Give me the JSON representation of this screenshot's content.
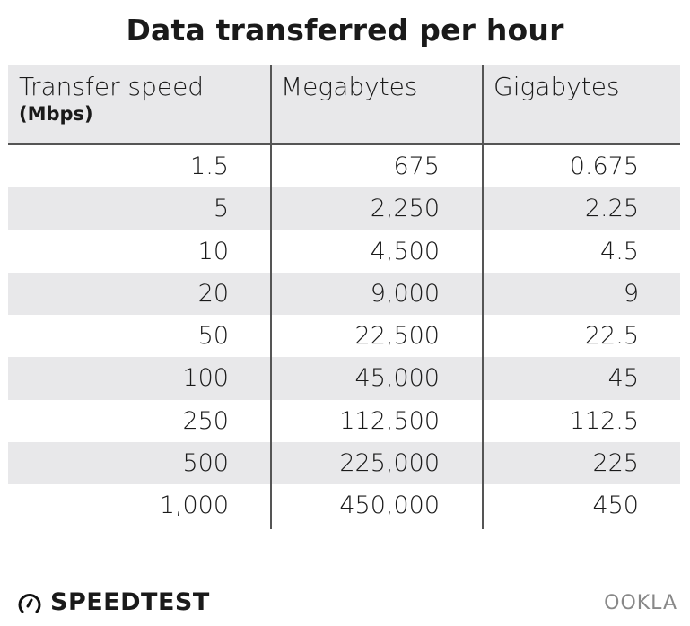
{
  "chart_data": {
    "type": "table",
    "title": "Data transferred per hour",
    "columns": [
      {
        "label": "Transfer speed",
        "sublabel": "(Mbps)"
      },
      {
        "label": "Megabytes"
      },
      {
        "label": "Gigabytes"
      }
    ],
    "rows": [
      [
        "1.5",
        "675",
        "0.675"
      ],
      [
        "5",
        "2,250",
        "2.25"
      ],
      [
        "10",
        "4,500",
        "4.5"
      ],
      [
        "20",
        "9,000",
        "9"
      ],
      [
        "50",
        "22,500",
        "22.5"
      ],
      [
        "100",
        "45,000",
        "45"
      ],
      [
        "250",
        "112,500",
        "112.5"
      ],
      [
        "500",
        "225,000",
        "225"
      ],
      [
        "1,000",
        "450,000",
        "450"
      ]
    ],
    "colors": {
      "header_band": "#e8e8ea",
      "alt_row": "#e8e8ea",
      "rules": "#555555"
    }
  },
  "footer": {
    "brand": "SPEEDTEST",
    "brand_icon": "speedometer-icon",
    "partner_logo": "OOKLA"
  }
}
